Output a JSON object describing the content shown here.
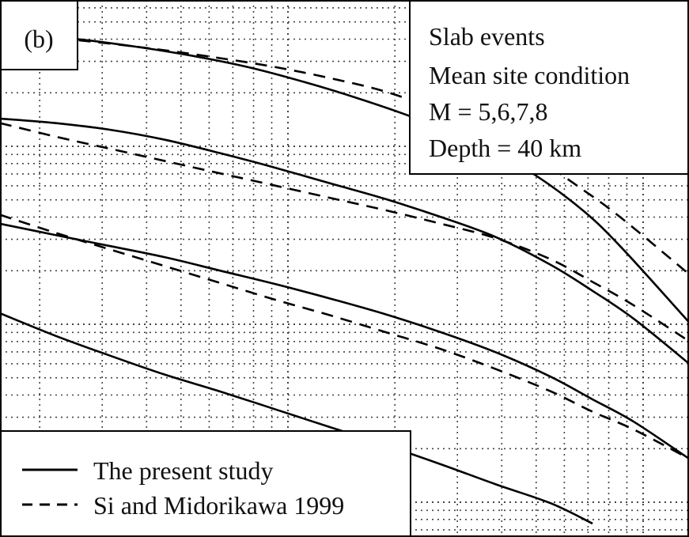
{
  "chart_data": {
    "type": "line",
    "panel_label": "(b)",
    "conditions": [
      "Slab events",
      "Mean site condition",
      "M = 5,6,7,8",
      "Depth = 40 km"
    ],
    "x_scale": "log",
    "y_scale": "log",
    "grid": true,
    "tick_labels_visible": false,
    "legend": {
      "placement": "bottom-left",
      "entries": [
        {
          "style": "solid",
          "label": "The present study"
        },
        {
          "style": "dashed",
          "label": "Si and Midorikawa 1999"
        }
      ]
    },
    "series": [
      {
        "style": "solid",
        "x": [
          0.0,
          0.06,
          0.12,
          0.2,
          0.28,
          0.36,
          0.44,
          0.52,
          0.6,
          0.68,
          0.76,
          0.84,
          0.9,
          1.0
        ],
        "y": [
          3.0,
          2.975,
          2.945,
          2.88,
          2.8,
          2.7,
          2.57,
          2.42,
          2.25,
          2.05,
          1.8,
          1.45,
          1.1,
          0.42
        ]
      },
      {
        "style": "solid",
        "x": [
          0.0,
          0.08,
          0.16,
          0.24,
          0.32,
          0.4,
          0.48,
          0.56,
          0.64,
          0.72,
          0.8,
          0.86,
          0.92,
          1.0
        ],
        "y": [
          2.24,
          2.2,
          2.14,
          2.05,
          1.93,
          1.8,
          1.66,
          1.52,
          1.36,
          1.18,
          0.93,
          0.7,
          0.45,
          0.05
        ]
      },
      {
        "style": "solid",
        "x": [
          0.0,
          0.08,
          0.16,
          0.24,
          0.32,
          0.4,
          0.48,
          0.56,
          0.64,
          0.72,
          0.8,
          0.86,
          0.92,
          1.0
        ],
        "y": [
          1.3,
          1.2,
          1.1,
          1.0,
          0.88,
          0.76,
          0.63,
          0.49,
          0.33,
          0.15,
          -0.07,
          -0.27,
          -0.47,
          -0.8
        ]
      },
      {
        "style": "solid",
        "x": [
          0.0,
          0.08,
          0.16,
          0.24,
          0.32,
          0.4,
          0.48,
          0.56,
          0.64,
          0.72,
          0.8,
          0.86
        ],
        "y": [
          0.5,
          0.3,
          0.12,
          -0.05,
          -0.2,
          -0.36,
          -0.52,
          -0.68,
          -0.85,
          -1.03,
          -1.2,
          -1.38
        ]
      },
      {
        "style": "dashed",
        "x": [
          0.0,
          0.08,
          0.16,
          0.24,
          0.32,
          0.4,
          0.48,
          0.56,
          0.64,
          0.72,
          0.78,
          0.84,
          0.9,
          1.0
        ],
        "y": [
          3.0,
          2.96,
          2.91,
          2.85,
          2.78,
          2.7,
          2.6,
          2.48,
          2.3,
          2.08,
          1.88,
          1.63,
          1.36,
          0.85
        ]
      },
      {
        "style": "dashed",
        "x": [
          0.0,
          0.08,
          0.16,
          0.24,
          0.32,
          0.4,
          0.48,
          0.56,
          0.64,
          0.72,
          0.8,
          0.86,
          0.92,
          1.0
        ],
        "y": [
          2.2,
          2.08,
          1.97,
          1.86,
          1.75,
          1.64,
          1.53,
          1.42,
          1.3,
          1.17,
          0.98,
          0.78,
          0.57,
          0.25
        ]
      },
      {
        "style": "dashed",
        "x": [
          0.0,
          0.08,
          0.16,
          0.24,
          0.32,
          0.4,
          0.48,
          0.56,
          0.64,
          0.72,
          0.8,
          0.86,
          0.92,
          1.0
        ],
        "y": [
          1.38,
          1.22,
          1.07,
          0.92,
          0.77,
          0.62,
          0.48,
          0.33,
          0.18,
          0.0,
          -0.2,
          -0.38,
          -0.54,
          -0.8
        ]
      }
    ]
  }
}
